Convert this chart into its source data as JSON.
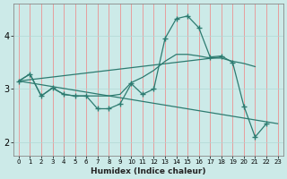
{
  "xlabel": "Humidex (Indice chaleur)",
  "bg_color": "#cceae8",
  "line_color": "#2d7b70",
  "grid_color_v": "#f08080",
  "grid_color_h": "#b0d8d5",
  "xticks": [
    0,
    1,
    2,
    3,
    4,
    5,
    6,
    7,
    8,
    9,
    10,
    11,
    12,
    13,
    14,
    15,
    16,
    17,
    18,
    19,
    20,
    21,
    22,
    23
  ],
  "yticks": [
    2,
    3,
    4
  ],
  "ylim": [
    1.75,
    4.6
  ],
  "xlim": [
    -0.5,
    23.5
  ],
  "series": [
    {
      "x": [
        0,
        1,
        2,
        3,
        4,
        5,
        6,
        7,
        8,
        9,
        10,
        11,
        12,
        13,
        14,
        15,
        16,
        17,
        18,
        19,
        20,
        21,
        22
      ],
      "y": [
        3.15,
        3.28,
        2.87,
        3.02,
        2.9,
        2.87,
        2.87,
        2.63,
        2.63,
        2.72,
        3.1,
        2.9,
        3.0,
        3.95,
        4.32,
        4.37,
        4.15,
        3.6,
        3.62,
        3.5,
        2.68,
        2.1,
        2.35
      ],
      "marker": true
    },
    {
      "x": [
        0,
        1,
        2,
        3,
        4,
        5,
        6,
        7,
        8,
        9,
        10,
        11,
        12,
        13,
        14,
        15,
        16,
        17,
        18,
        19,
        20,
        21
      ],
      "y": [
        3.15,
        3.28,
        2.87,
        3.02,
        2.9,
        2.87,
        2.87,
        2.87,
        2.87,
        2.9,
        3.12,
        3.22,
        3.35,
        3.52,
        3.65,
        3.65,
        3.62,
        3.58,
        3.58,
        3.52,
        3.48,
        3.42
      ],
      "marker": false
    },
    {
      "x": [
        0,
        23
      ],
      "y": [
        3.15,
        2.35
      ],
      "marker": false
    },
    {
      "x": [
        0,
        18
      ],
      "y": [
        3.15,
        3.6
      ],
      "marker": false
    }
  ]
}
